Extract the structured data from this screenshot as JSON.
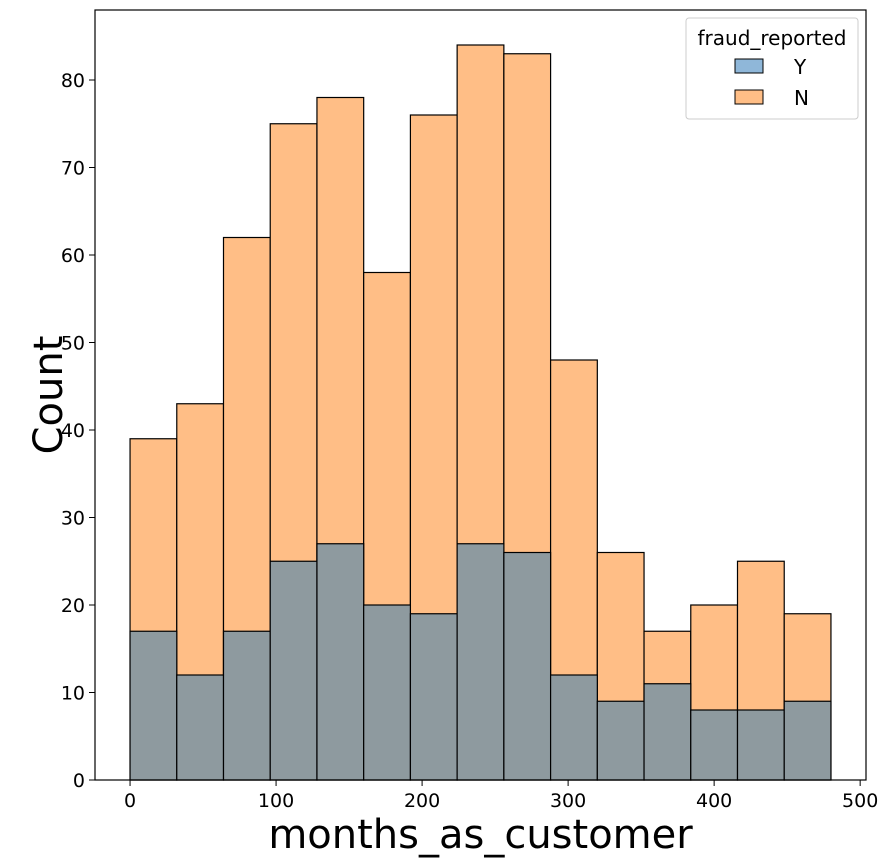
{
  "chart_data": {
    "type": "bar",
    "subtype": "overlaid-histogram",
    "xlabel": "months_as_customer",
    "ylabel": "Count",
    "xlim": [
      -24,
      504
    ],
    "ylim": [
      0,
      88
    ],
    "xticks": [
      0,
      100,
      200,
      300,
      400,
      500
    ],
    "yticks": [
      0,
      10,
      20,
      30,
      40,
      50,
      60,
      70,
      80
    ],
    "xtick_labels": [
      "0",
      "100",
      "200",
      "300",
      "400",
      "500"
    ],
    "ytick_labels": [
      "0",
      "10",
      "20",
      "30",
      "40",
      "50",
      "60",
      "70",
      "80"
    ],
    "bin_edges": [
      0,
      32,
      64,
      96,
      128,
      160,
      192,
      224,
      256,
      288,
      320,
      352,
      384,
      416,
      448,
      480
    ],
    "grid": false,
    "legend": {
      "title": "fraud_reported",
      "placement": "top-right",
      "entries": [
        {
          "label": "Y",
          "color": "#1f77b4"
        },
        {
          "label": "N",
          "color": "#ff7f0e"
        }
      ]
    },
    "series": [
      {
        "name": "Y",
        "color": "#1f77b4",
        "values": [
          17,
          12,
          17,
          25,
          27,
          20,
          19,
          27,
          26,
          12,
          9,
          11,
          8,
          8,
          9
        ]
      },
      {
        "name": "N",
        "color": "#ff7f0e",
        "values": [
          39,
          43,
          62,
          75,
          78,
          58,
          76,
          84,
          83,
          48,
          26,
          17,
          20,
          25,
          19
        ]
      }
    ],
    "overlap_color": "#8e9a9f"
  }
}
